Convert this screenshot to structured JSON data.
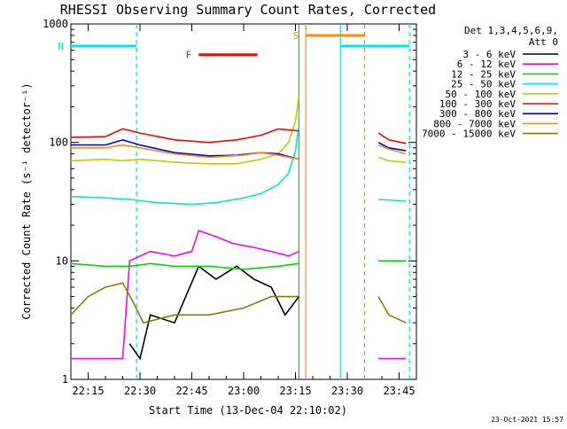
{
  "chart_data": {
    "type": "line",
    "title": "RHESSI Observing Summary Count Rates, Corrected",
    "xlabel": "Start Time (13-Dec-04 22:10:02)",
    "ylabel": "Corrected Count Rate (s⁻¹ detector⁻¹)",
    "y_scale": "log",
    "ylim": [
      1,
      1000
    ],
    "y_ticks": [
      1,
      10,
      100,
      1000
    ],
    "y_tick_labels": [
      "1",
      "10",
      "100",
      "1000"
    ],
    "xlim": [
      "22:10",
      "23:50"
    ],
    "x_ticks": [
      "22:15",
      "22:30",
      "22:45",
      "23:00",
      "23:15",
      "23:30",
      "23:45"
    ],
    "legend_header": [
      "Det 1,3,4,5,6,9,",
      "Att 0"
    ],
    "legend_position": "right",
    "timestamp": "23-Oct-2021 15:57",
    "series": [
      {
        "name": "3 - 6 keV",
        "color": "#000000",
        "points": [
          [
            "22:27",
            2
          ],
          [
            "22:30",
            1.5
          ],
          [
            "22:33",
            3.5
          ],
          [
            "22:40",
            3
          ],
          [
            "22:47",
            9
          ],
          [
            "22:52",
            7
          ],
          [
            "22:58",
            9
          ],
          [
            "23:03",
            7
          ],
          [
            "23:08",
            6
          ],
          [
            "23:12",
            3.5
          ],
          [
            "23:16",
            5
          ]
        ]
      },
      {
        "name": "6 - 12 keV",
        "color": "#ff00ff",
        "points": [
          [
            "22:10",
            1.5
          ],
          [
            "22:18",
            1.5
          ],
          [
            "22:25",
            1.5
          ],
          [
            "22:27",
            10
          ],
          [
            "22:33",
            12
          ],
          [
            "22:40",
            11
          ],
          [
            "22:45",
            12
          ],
          [
            "22:47",
            18
          ],
          [
            "22:52",
            16
          ],
          [
            "22:57",
            14
          ],
          [
            "23:03",
            13
          ],
          [
            "23:08",
            12
          ],
          [
            "23:13",
            11
          ],
          [
            "23:16",
            12
          ]
        ]
      },
      {
        "name": "12 - 25 keV",
        "color": "#00d800",
        "points": [
          [
            "22:10",
            9.5
          ],
          [
            "22:20",
            9
          ],
          [
            "22:27",
            9
          ],
          [
            "22:33",
            9.5
          ],
          [
            "22:40",
            9
          ],
          [
            "22:50",
            9
          ],
          [
            "23:00",
            8.5
          ],
          [
            "23:10",
            9
          ],
          [
            "23:16",
            9.5
          ]
        ]
      },
      {
        "name": "25 - 50 keV",
        "color": "#00e5e5",
        "points": [
          [
            "22:10",
            35
          ],
          [
            "22:20",
            34
          ],
          [
            "22:27",
            33
          ],
          [
            "22:35",
            31
          ],
          [
            "22:45",
            30
          ],
          [
            "22:52",
            31
          ],
          [
            "23:00",
            34
          ],
          [
            "23:05",
            37
          ],
          [
            "23:10",
            44
          ],
          [
            "23:13",
            55
          ],
          [
            "23:15",
            85
          ],
          [
            "23:16",
            140
          ]
        ]
      },
      {
        "name": "50 - 100 keV",
        "color": "#c8c800",
        "points": [
          [
            "22:10",
            70
          ],
          [
            "22:20",
            72
          ],
          [
            "22:25",
            70
          ],
          [
            "22:30",
            72
          ],
          [
            "22:40",
            68
          ],
          [
            "22:50",
            66
          ],
          [
            "22:58",
            66
          ],
          [
            "23:05",
            72
          ],
          [
            "23:10",
            80
          ],
          [
            "23:13",
            100
          ],
          [
            "23:15",
            150
          ],
          [
            "23:16",
            250
          ]
        ]
      },
      {
        "name": "100 - 300 keV",
        "color": "#ff0000",
        "points": [
          [
            "22:10",
            110
          ],
          [
            "22:20",
            112
          ],
          [
            "22:25",
            130
          ],
          [
            "22:30",
            120
          ],
          [
            "22:40",
            105
          ],
          [
            "22:50",
            100
          ],
          [
            "22:58",
            105
          ],
          [
            "23:05",
            115
          ],
          [
            "23:10",
            130
          ],
          [
            "23:16",
            125
          ]
        ]
      },
      {
        "name": "300 - 800 keV",
        "color": "#0000ff",
        "points": [
          [
            "22:10",
            95
          ],
          [
            "22:20",
            95
          ],
          [
            "22:25",
            105
          ],
          [
            "22:30",
            95
          ],
          [
            "22:40",
            82
          ],
          [
            "22:50",
            77
          ],
          [
            "22:58",
            78
          ],
          [
            "23:05",
            82
          ],
          [
            "23:10",
            80
          ],
          [
            "23:16",
            72
          ]
        ]
      },
      {
        "name": "800 - 7000 keV",
        "color": "#ff8c00",
        "points": [
          [
            "22:10",
            90
          ],
          [
            "22:20",
            90
          ],
          [
            "22:25",
            95
          ],
          [
            "22:30",
            90
          ],
          [
            "22:40",
            80
          ],
          [
            "22:50",
            75
          ],
          [
            "23:00",
            78
          ],
          [
            "23:05",
            82
          ],
          [
            "23:10",
            78
          ],
          [
            "23:16",
            72
          ]
        ]
      },
      {
        "name": "7000 - 15000 keV",
        "color": "#808000",
        "points": [
          [
            "22:10",
            3.5
          ],
          [
            "22:15",
            5
          ],
          [
            "22:20",
            6
          ],
          [
            "22:25",
            6.5
          ],
          [
            "22:28",
            4.5
          ],
          [
            "22:31",
            3
          ],
          [
            "22:40",
            3.5
          ],
          [
            "22:50",
            3.5
          ],
          [
            "23:00",
            4
          ],
          [
            "23:08",
            5
          ],
          [
            "23:16",
            5
          ]
        ]
      }
    ],
    "post_gap_series": [
      {
        "color": "#ff0000",
        "points": [
          [
            "23:39",
            120
          ],
          [
            "23:42",
            105
          ],
          [
            "23:47",
            98
          ]
        ]
      },
      {
        "color": "#0000ff",
        "points": [
          [
            "23:39",
            100
          ],
          [
            "23:42",
            90
          ],
          [
            "23:47",
            85
          ]
        ]
      },
      {
        "color": "#ff8c00",
        "points": [
          [
            "23:39",
            95
          ],
          [
            "23:42",
            88
          ],
          [
            "23:47",
            80
          ]
        ]
      },
      {
        "color": "#c8c800",
        "points": [
          [
            "23:39",
            75
          ],
          [
            "23:42",
            70
          ],
          [
            "23:47",
            68
          ]
        ]
      },
      {
        "color": "#00e5e5",
        "points": [
          [
            "23:39",
            33
          ],
          [
            "23:47",
            32
          ]
        ]
      },
      {
        "color": "#00d800",
        "points": [
          [
            "23:39",
            10
          ],
          [
            "23:47",
            10
          ]
        ]
      },
      {
        "color": "#808000",
        "points": [
          [
            "23:39",
            5
          ],
          [
            "23:42",
            3.5
          ],
          [
            "23:47",
            3
          ]
        ]
      },
      {
        "color": "#ff00ff",
        "points": [
          [
            "23:39",
            1.5
          ],
          [
            "23:47",
            1.5
          ]
        ]
      }
    ],
    "flags": [
      {
        "label": "N",
        "color": "#00e5e5",
        "from": "22:10",
        "to": "22:29",
        "level": 650,
        "end_marker": "22:29"
      },
      {
        "label": "F",
        "color": "#ff0000",
        "from": "22:47",
        "to": "23:04",
        "level": 550
      },
      {
        "label": "S",
        "color": "#ff8c00",
        "from": "23:18",
        "to": "23:35",
        "level": 800,
        "end_marker": "23:35"
      },
      {
        "label": "",
        "color": "#00e5e5",
        "from": "23:28",
        "to": "23:48",
        "level": 650,
        "end_marker": "23:48"
      }
    ],
    "vertical_markers": [
      {
        "time": "23:16",
        "color": "#00d800",
        "style": "solid"
      },
      {
        "time": "23:18",
        "color": "#ff8c00",
        "style": "solid"
      },
      {
        "time": "23:28",
        "color": "#00e5e5",
        "style": "solid"
      },
      {
        "time": "22:29",
        "color": "#00e5e5",
        "style": "dashed"
      },
      {
        "time": "23:35",
        "color": "#ff8c00",
        "style": "dashed"
      },
      {
        "time": "23:48",
        "color": "#00e5e5",
        "style": "dashed"
      }
    ]
  }
}
